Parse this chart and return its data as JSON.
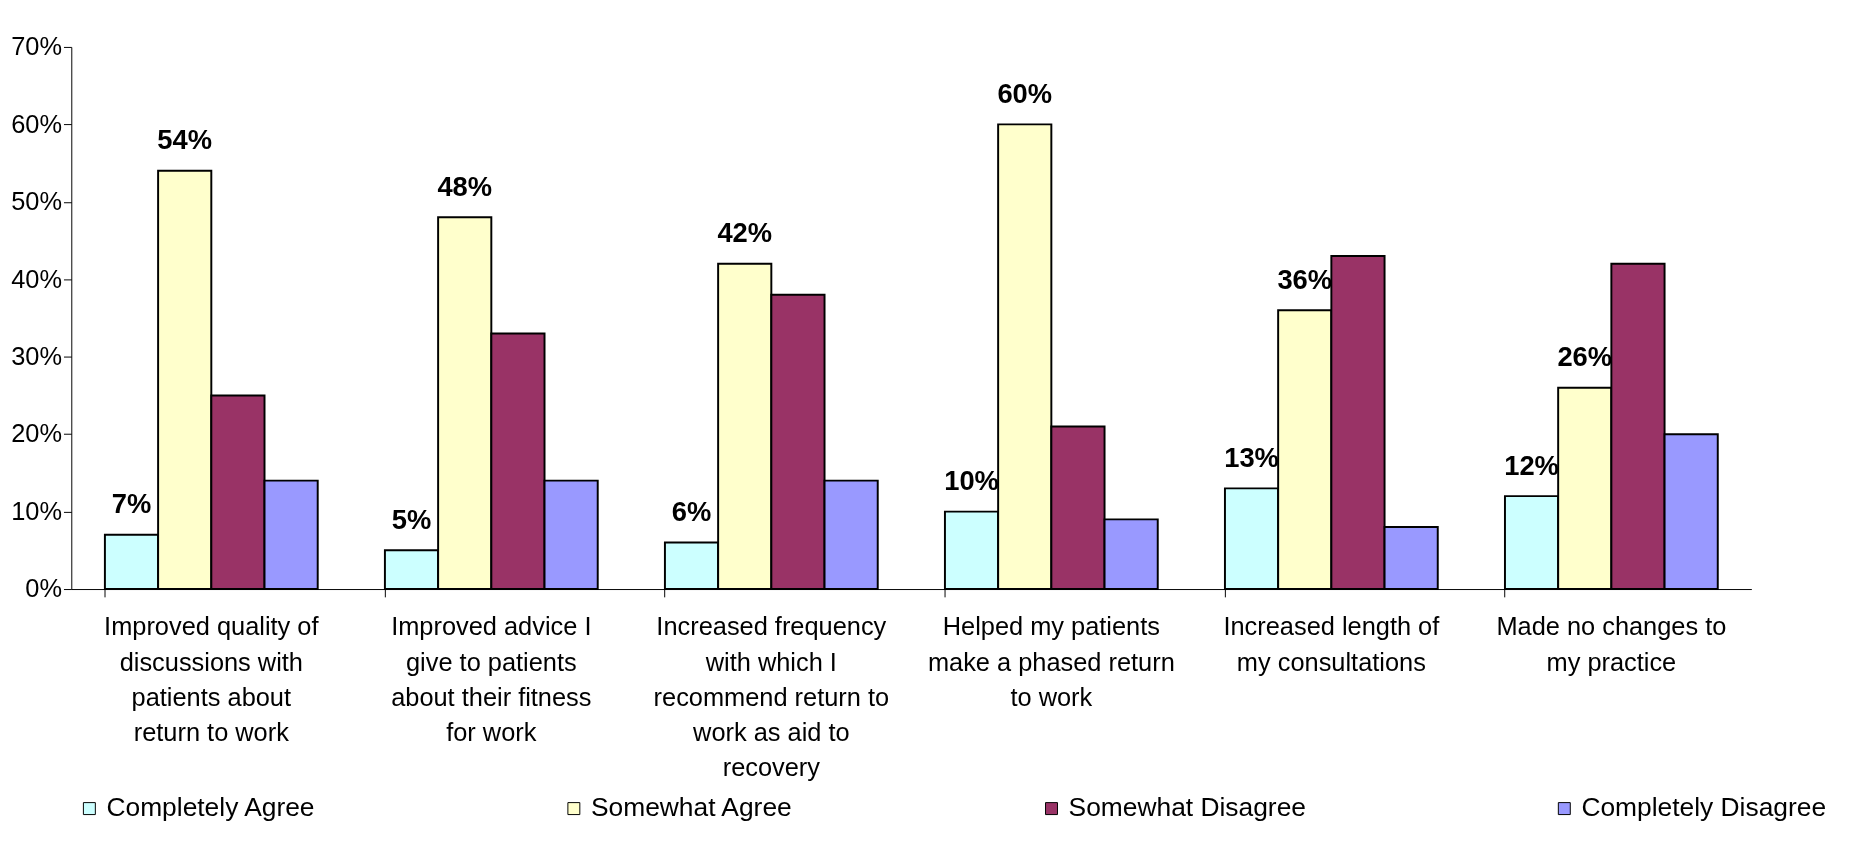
{
  "chart_data": {
    "type": "bar",
    "categories": [
      "Improved quality of discussions with patients about return to work",
      "Improved advice I give to patients about their fitness for work",
      "Increased frequency with which I recommend return to work as aid to recovery",
      "Helped my patients make a phased return to work",
      "Increased length of my consultations",
      "Made no changes to my practice"
    ],
    "series": [
      {
        "name": "Completely Agree",
        "color": "#ccffff",
        "values": [
          7,
          5,
          6,
          10,
          13,
          12
        ],
        "value_labels": [
          "7%",
          "5%",
          "6%",
          "10%",
          "13%",
          "12%"
        ]
      },
      {
        "name": "Somewhat Agree",
        "color": "#ffffcc",
        "values": [
          54,
          48,
          42,
          60,
          36,
          26
        ],
        "value_labels": [
          "54%",
          "48%",
          "42%",
          "60%",
          "36%",
          "26%"
        ]
      },
      {
        "name": "Somewhat Disagree",
        "color": "#993366",
        "values": [
          25,
          33,
          38,
          21,
          43,
          42
        ]
      },
      {
        "name": "Completely Disagree",
        "color": "#9999ff",
        "values": [
          14,
          14,
          14,
          9,
          8,
          20
        ]
      }
    ],
    "ylim": [
      0,
      70
    ],
    "yticks": [
      {
        "value": 0,
        "label": "0%"
      },
      {
        "value": 10,
        "label": "10%"
      },
      {
        "value": 20,
        "label": "20%"
      },
      {
        "value": 30,
        "label": "30%"
      },
      {
        "value": 40,
        "label": "40%"
      },
      {
        "value": 50,
        "label": "50%"
      },
      {
        "value": 60,
        "label": "60%"
      },
      {
        "value": 70,
        "label": "70%"
      }
    ],
    "grid": false,
    "legend": "bottom"
  }
}
